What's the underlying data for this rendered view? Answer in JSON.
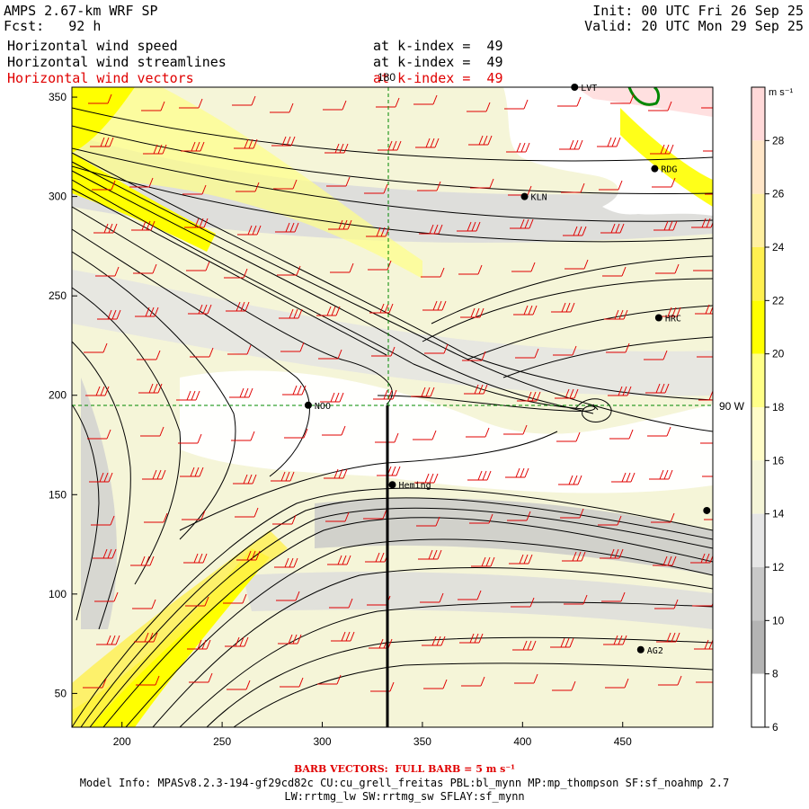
{
  "header": {
    "model": "AMPS 2.67-km WRF SP",
    "fcst_label": "Fcst:",
    "fcst_hours": "92 h",
    "init": "Init: 00 UTC Fri 26 Sep 25",
    "valid": "Valid: 20 UTC Mon 29 Sep 25",
    "fields": [
      {
        "name": "Horizontal wind speed",
        "level": "at k-index =  49",
        "color": "#000000"
      },
      {
        "name": "Horizontal wind streamlines",
        "level": "at k-index =  49",
        "color": "#000000"
      },
      {
        "name": "Horizontal wind vectors",
        "level": "at k-index =  49",
        "color": "#e00000"
      }
    ]
  },
  "axes": {
    "x_ticks": [
      "200",
      "250",
      "300",
      "350",
      "400",
      "450"
    ],
    "y_ticks": [
      "350",
      "300",
      "250",
      "200",
      "150",
      "100",
      "50"
    ],
    "x_range": [
      175,
      495
    ],
    "y_range": [
      33,
      355
    ],
    "meridian_label": "180",
    "parallel_label": "90 W"
  },
  "stations": [
    {
      "id": "LVT",
      "x": 426,
      "y": 355
    },
    {
      "id": "RDG",
      "x": 466,
      "y": 314
    },
    {
      "id": "KLN",
      "x": 401,
      "y": 300
    },
    {
      "id": "HRC",
      "x": 468,
      "y": 239
    },
    {
      "id": "NOO",
      "x": 293,
      "y": 195
    },
    {
      "id": "Heming",
      "x": 335,
      "y": 155
    },
    {
      "id": "AG2",
      "x": 459,
      "y": 72
    },
    {
      "id": "",
      "x": 492,
      "y": 142
    }
  ],
  "colorbar": {
    "unit": "m s⁻¹",
    "tick_labels": [
      "28",
      "26",
      "24",
      "22",
      "20",
      "18",
      "16",
      "14",
      "12",
      "10",
      "8",
      "6"
    ],
    "colors": [
      "#ffd9d9",
      "#ffe6c8",
      "#fff0a0",
      "#fff050",
      "#ffff00",
      "#ffff88",
      "#fffcc8",
      "#f5f5d8",
      "#e6e6e6",
      "#c8c8c8",
      "#b4b4b4",
      "#ffffff"
    ]
  },
  "footer": {
    "barb_title": "BARB VECTORS:  FULL BARB = 5 m s⁻¹",
    "model_info": "Model Info: MPASv8.2.3-194-gf29cd82c CU:cu_grell_freitas PBL:bl_mynn MP:mp_thompson SF:sf_noahmp 2.7",
    "model_info2": "LW:rrtmg_lw SW:rrtmg_sw SFLAY:sf_mynn"
  },
  "colors": {
    "land": "#ffffff",
    "coast": "#000000",
    "grid": "#008800",
    "barb": "#e00000",
    "streamline": "#000000"
  }
}
